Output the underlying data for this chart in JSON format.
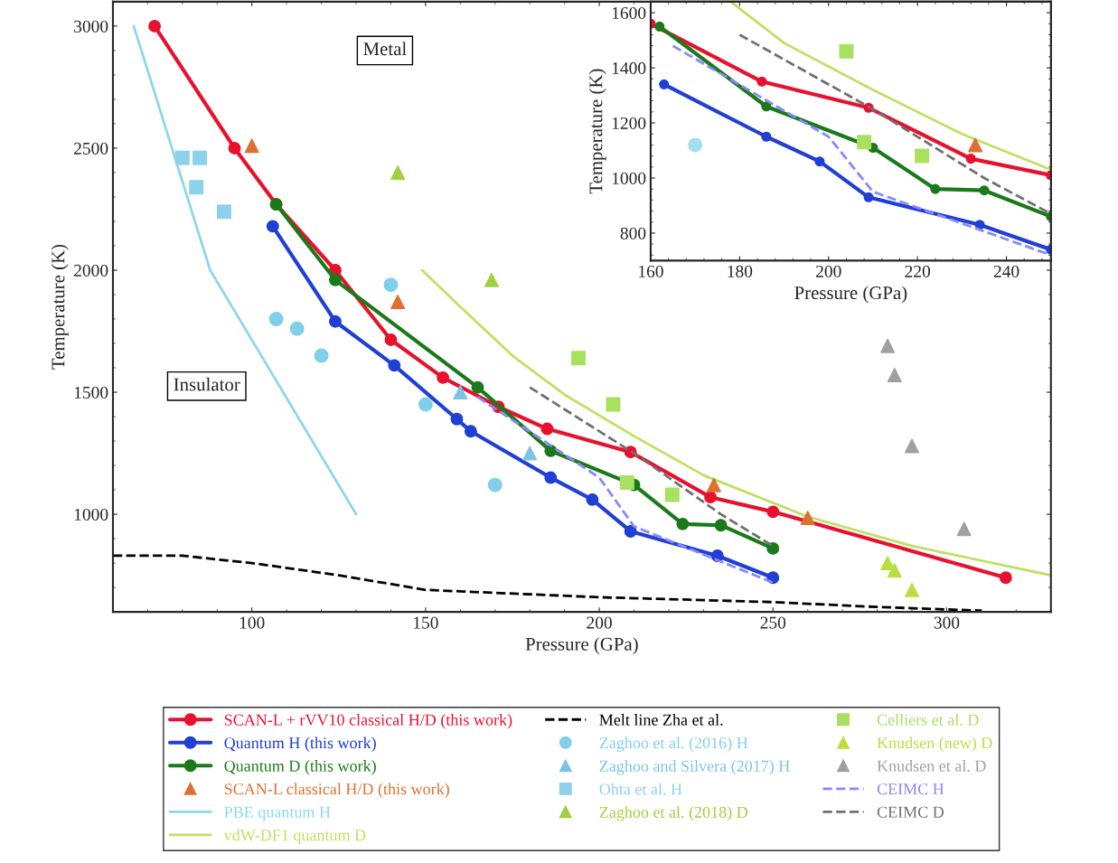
{
  "chart_data": [
    {
      "type": "line",
      "xlabel": "Pressure (GPa)",
      "ylabel": "Temperature (K)",
      "xlim": [
        60,
        330
      ],
      "xticks": [
        100,
        150,
        200,
        250,
        300
      ],
      "ylim": [
        600,
        3100
      ],
      "yticks": [
        1000,
        1500,
        2000,
        2500,
        3000
      ],
      "grid": false,
      "legend": "bottom",
      "annotations": [
        "Metal",
        "Insulator"
      ],
      "series": [
        {
          "name": "SCAN-L + rVV10 classical H/D (this work)",
          "type": "line",
          "color": "#e8112d",
          "marker": "circle",
          "line_style": "solid",
          "x": [
            72,
            95,
            107,
            124,
            140,
            155,
            171,
            185,
            209,
            232,
            250,
            317
          ],
          "values": [
            3000,
            2500,
            2270,
            2000,
            1715,
            1560,
            1440,
            1350,
            1255,
            1070,
            1010,
            740
          ]
        },
        {
          "name": "Quantum H (this work)",
          "type": "line",
          "color": "#1f3fd6",
          "marker": "circle",
          "line_style": "solid",
          "x": [
            106,
            124,
            141,
            159,
            163,
            186,
            198,
            209,
            234,
            250
          ],
          "values": [
            2180,
            1790,
            1610,
            1390,
            1340,
            1150,
            1060,
            930,
            830,
            740
          ]
        },
        {
          "name": "Quantum D (this work)",
          "type": "line",
          "color": "#1a7a1a",
          "marker": "circle",
          "line_style": "solid",
          "x": [
            107,
            124,
            165,
            186,
            210,
            224,
            235,
            250
          ],
          "values": [
            2270,
            1960,
            1520,
            1260,
            1120,
            960,
            955,
            860
          ]
        },
        {
          "name": "SCAN-L classical H/D (this work)",
          "type": "scatter",
          "color": "#e07030",
          "marker": "triangle",
          "x": [
            100,
            142,
            233,
            260
          ],
          "values": [
            2510,
            1870,
            1120,
            985
          ]
        },
        {
          "name": "PBE quantum H",
          "color": "#8ad8ea",
          "marker": "none",
          "line_style": "solid",
          "x": [
            66,
            88,
            130
          ],
          "values": [
            3000,
            2000,
            1000
          ]
        },
        {
          "name": "vdW-DF1 quantum D",
          "type": "line",
          "color": "#c0e060",
          "marker": "none",
          "line_style": "solid",
          "x": [
            149,
            160,
            175,
            190,
            210,
            230,
            260,
            290,
            330
          ],
          "values": [
            2000,
            1850,
            1650,
            1490,
            1320,
            1160,
            990,
            870,
            750
          ]
        },
        {
          "name": "Melt line Zha et al.",
          "type": "line",
          "color": "#000000",
          "marker": "none",
          "line_style": "dashed",
          "x": [
            60,
            80,
            100,
            125,
            150,
            200,
            250,
            280,
            310
          ],
          "values": [
            830,
            830,
            800,
            750,
            690,
            660,
            640,
            620,
            605
          ]
        },
        {
          "name": "Zaghoo et al. (2016) H",
          "type": "scatter",
          "color": "#80d0ea",
          "marker": "circle",
          "x": [
            107,
            113,
            120,
            140,
            150,
            170
          ],
          "values": [
            1800,
            1760,
            1650,
            1940,
            1450,
            1120
          ]
        },
        {
          "name": "Zaghoo and Silvera (2017) H",
          "type": "scatter",
          "color": "#7cc4e4",
          "marker": "triangle",
          "x": [
            160,
            180
          ],
          "values": [
            1500,
            1250
          ]
        },
        {
          "name": "Ohta et al. H",
          "type": "scatter",
          "color": "#8cd2ea",
          "marker": "square",
          "x": [
            80,
            85,
            84,
            92
          ],
          "values": [
            2460,
            2460,
            2340,
            2240
          ]
        },
        {
          "name": "Zaghoo et al. (2018) D",
          "type": "scatter",
          "color": "#a0d040",
          "marker": "triangle",
          "x": [
            142,
            169
          ],
          "values": [
            2400,
            1960
          ]
        },
        {
          "name": "Celliers et al. D",
          "type": "scatter",
          "color": "#a8e060",
          "marker": "square",
          "x": [
            194,
            204,
            208,
            221
          ],
          "values": [
            1640,
            1450,
            1130,
            1080
          ]
        },
        {
          "name": "Knudsen (new) D",
          "type": "scatter",
          "color": "#b8e040",
          "marker": "triangle",
          "x": [
            283,
            285,
            290
          ],
          "values": [
            800,
            770,
            690
          ]
        },
        {
          "name": "Knudsen et al. D",
          "type": "scatter",
          "color": "#a0a0a0",
          "marker": "triangle",
          "x": [
            283,
            285,
            290,
            305
          ],
          "values": [
            1690,
            1570,
            1280,
            940
          ]
        },
        {
          "name": "CEIMC H",
          "type": "line",
          "color": "#8888ff",
          "marker": "none",
          "line_style": "dashed",
          "x": [
            165,
            200,
            210,
            250
          ],
          "values": [
            1480,
            1150,
            950,
            720
          ]
        },
        {
          "name": "CEIMC D",
          "type": "line",
          "color": "#707070",
          "marker": "none",
          "line_style": "dashed",
          "x": [
            180,
            210,
            235,
            250
          ],
          "values": [
            1520,
            1250,
            1000,
            870
          ]
        }
      ]
    },
    {
      "type": "line",
      "xlabel": "Pressure (GPa)",
      "ylabel": "Temperature (K)",
      "xlim": [
        160,
        250
      ],
      "xticks": [
        160,
        180,
        200,
        220,
        240
      ],
      "ylim": [
        700,
        1640
      ],
      "yticks": [
        800,
        1000,
        1200,
        1400,
        1600
      ],
      "grid": false,
      "series": [
        {
          "type": "line",
          "color": "#e8112d",
          "marker": "circle",
          "line_style": "solid",
          "x": [
            160,
            185,
            209,
            232,
            250
          ],
          "values": [
            1560,
            1350,
            1255,
            1070,
            1010
          ]
        },
        {
          "type": "line",
          "color": "#1f3fd6",
          "marker": "circle",
          "line_style": "solid",
          "x": [
            163,
            186,
            198,
            209,
            234,
            250
          ],
          "values": [
            1340,
            1150,
            1060,
            930,
            830,
            740
          ]
        },
        {
          "type": "line",
          "color": "#1a7a1a",
          "marker": "circle",
          "line_style": "solid",
          "x": [
            162,
            186,
            210,
            224,
            235,
            250
          ],
          "values": [
            1550,
            1260,
            1110,
            960,
            955,
            860
          ]
        },
        {
          "color": "#c0e060",
          "marker": "none",
          "line_style": "solid",
          "x": [
            178,
            190,
            210,
            230,
            250
          ],
          "values": [
            1640,
            1490,
            1320,
            1160,
            1030
          ]
        },
        {
          "type": "line",
          "color": "#8888ff",
          "marker": "none",
          "line_style": "dashed",
          "x": [
            165,
            200,
            210,
            250
          ],
          "values": [
            1480,
            1150,
            950,
            720
          ]
        },
        {
          "type": "line",
          "color": "#707070",
          "marker": "none",
          "line_style": "dashed",
          "x": [
            180,
            210,
            235,
            250
          ],
          "values": [
            1520,
            1250,
            1000,
            870
          ]
        },
        {
          "type": "scatter",
          "color": "#a8e060",
          "marker": "square",
          "x": [
            204,
            208,
            221
          ],
          "values": [
            1460,
            1130,
            1080
          ]
        },
        {
          "type": "scatter",
          "color": "#e07030",
          "marker": "triangle",
          "x": [
            233
          ],
          "values": [
            1120
          ]
        },
        {
          "type": "scatter",
          "color": "#a0e0f0",
          "marker": "circle",
          "x": [
            170
          ],
          "values": [
            1120
          ]
        }
      ]
    }
  ]
}
